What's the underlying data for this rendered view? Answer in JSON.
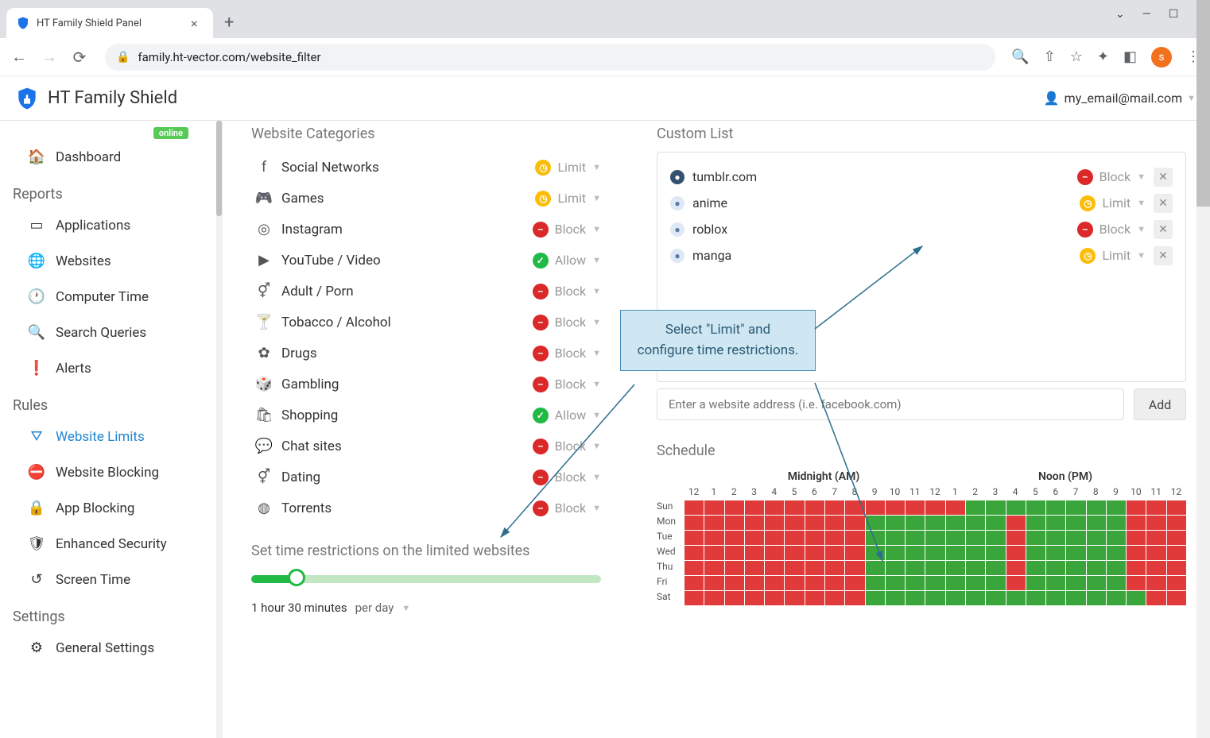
{
  "browser": {
    "tab_title": "HT Family Shield Panel",
    "url": "family.ht-vector.com/website_filter",
    "avatar_letter": "s"
  },
  "header": {
    "brand": "HT Family Shield",
    "account_email": "my_email@mail.com"
  },
  "sidebar": {
    "badge": "online",
    "top": {
      "dashboard": "Dashboard"
    },
    "reports": {
      "title": "Reports",
      "items": [
        "Applications",
        "Websites",
        "Computer Time",
        "Search Queries",
        "Alerts"
      ]
    },
    "rules": {
      "title": "Rules",
      "items": [
        "Website Limits",
        "Website Blocking",
        "App Blocking",
        "Enhanced Security",
        "Screen Time"
      ],
      "active_index": 0
    },
    "settings": {
      "title": "Settings",
      "items": [
        "General Settings"
      ]
    }
  },
  "categories": {
    "title": "Website Categories",
    "rows": [
      {
        "icon": "facebook",
        "label": "Social Networks",
        "status": "Limit"
      },
      {
        "icon": "gamepad",
        "label": "Games",
        "status": "Limit"
      },
      {
        "icon": "instagram",
        "label": "Instagram",
        "status": "Block"
      },
      {
        "icon": "youtube",
        "label": "YouTube / Video",
        "status": "Allow"
      },
      {
        "icon": "adult",
        "label": "Adult / Porn",
        "status": "Block"
      },
      {
        "icon": "alcohol",
        "label": "Tobacco / Alcohol",
        "status": "Block"
      },
      {
        "icon": "drugs",
        "label": "Drugs",
        "status": "Block"
      },
      {
        "icon": "dice",
        "label": "Gambling",
        "status": "Block"
      },
      {
        "icon": "shopping",
        "label": "Shopping",
        "status": "Allow"
      },
      {
        "icon": "chat",
        "label": "Chat sites",
        "status": "Block"
      },
      {
        "icon": "dating",
        "label": "Dating",
        "status": "Block"
      },
      {
        "icon": "torrent",
        "label": "Torrents",
        "status": "Block"
      }
    ]
  },
  "time_restriction": {
    "title": "Set time restrictions on the limited websites",
    "value_pct": 13,
    "value_label": "1 hour 30 minutes",
    "unit_label": "per day"
  },
  "custom": {
    "title": "Custom List",
    "sites": [
      {
        "name": "tumblr.com",
        "icon_bg": "#34526f",
        "icon_fg": "#fff",
        "status": "Block"
      },
      {
        "name": "anime",
        "icon_bg": "#dfe8f5",
        "icon_fg": "#5a7aa5",
        "status": "Limit"
      },
      {
        "name": "roblox",
        "icon_bg": "#dfe8f5",
        "icon_fg": "#5a7aa5",
        "status": "Block"
      },
      {
        "name": "manga",
        "icon_bg": "#dfe8f5",
        "icon_fg": "#5a7aa5",
        "status": "Limit"
      }
    ],
    "placeholder": "Enter a website address (i.e. facebook.com)",
    "add_label": "Add"
  },
  "callout": {
    "text": "Select \"Limit\" and configure time restrictions."
  },
  "schedule": {
    "title": "Schedule",
    "am_label": "Midnight (AM)",
    "pm_label": "Noon (PM)",
    "hours": [
      "12",
      "1",
      "2",
      "3",
      "4",
      "5",
      "6",
      "7",
      "8",
      "9",
      "10",
      "11",
      "12",
      "1",
      "2",
      "3",
      "4",
      "5",
      "6",
      "7",
      "8",
      "9",
      "10",
      "11",
      "12"
    ],
    "days": [
      "Sun",
      "Mon",
      "Tue",
      "Wed",
      "Thu",
      "Fri",
      "Sat"
    ],
    "grid": [
      [
        0,
        0,
        0,
        0,
        0,
        0,
        0,
        0,
        0,
        0,
        0,
        0,
        0,
        0,
        1,
        1,
        1,
        1,
        1,
        1,
        1,
        1,
        0,
        0,
        0
      ],
      [
        0,
        0,
        0,
        0,
        0,
        0,
        0,
        0,
        0,
        1,
        1,
        1,
        1,
        1,
        1,
        1,
        0,
        1,
        1,
        1,
        1,
        1,
        0,
        0,
        0
      ],
      [
        0,
        0,
        0,
        0,
        0,
        0,
        0,
        0,
        0,
        1,
        1,
        1,
        1,
        1,
        1,
        1,
        0,
        1,
        1,
        1,
        1,
        1,
        0,
        0,
        0
      ],
      [
        0,
        0,
        0,
        0,
        0,
        0,
        0,
        0,
        0,
        1,
        1,
        1,
        1,
        1,
        1,
        1,
        0,
        1,
        1,
        1,
        1,
        1,
        0,
        0,
        0
      ],
      [
        0,
        0,
        0,
        0,
        0,
        0,
        0,
        0,
        0,
        1,
        1,
        1,
        1,
        1,
        1,
        1,
        0,
        1,
        1,
        1,
        1,
        1,
        0,
        0,
        0
      ],
      [
        0,
        0,
        0,
        0,
        0,
        0,
        0,
        0,
        0,
        1,
        1,
        1,
        1,
        1,
        1,
        1,
        0,
        1,
        1,
        1,
        1,
        1,
        0,
        0,
        0
      ],
      [
        0,
        0,
        0,
        0,
        0,
        0,
        0,
        0,
        0,
        1,
        1,
        1,
        1,
        1,
        1,
        1,
        1,
        1,
        1,
        1,
        1,
        1,
        1,
        0,
        0
      ]
    ],
    "colors": {
      "blocked": "#e03a3a",
      "allowed": "#3aa53a"
    }
  }
}
